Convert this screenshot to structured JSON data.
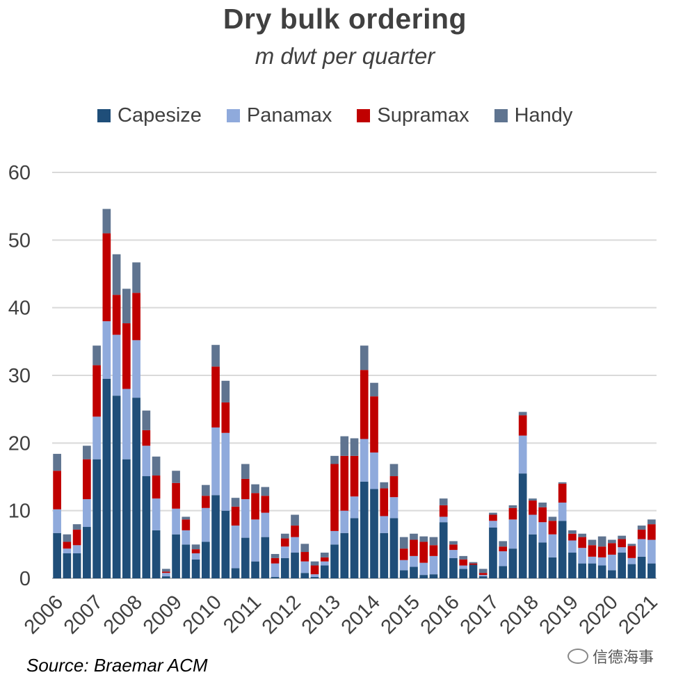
{
  "chart_data": {
    "type": "bar",
    "stacked": true,
    "title": "Dry bulk ordering",
    "subtitle": "m dwt per quarter",
    "ylim": [
      0,
      60
    ],
    "yticks": [
      0,
      10,
      20,
      30,
      40,
      50,
      60
    ],
    "grid": true,
    "legend_position": "top",
    "year_labels": [
      "2006",
      "2007",
      "2008",
      "2009",
      "2010",
      "2011",
      "2012",
      "2013",
      "2014",
      "2015",
      "2016",
      "2017",
      "2018",
      "2019",
      "2020",
      "2021"
    ],
    "categories": [
      "2006Q1",
      "2006Q2",
      "2006Q3",
      "2006Q4",
      "2007Q1",
      "2007Q2",
      "2007Q3",
      "2007Q4",
      "2008Q1",
      "2008Q2",
      "2008Q3",
      "2008Q4",
      "2009Q1",
      "2009Q2",
      "2009Q3",
      "2009Q4",
      "2010Q1",
      "2010Q2",
      "2010Q3",
      "2010Q4",
      "2011Q1",
      "2011Q2",
      "2011Q3",
      "2011Q4",
      "2012Q1",
      "2012Q2",
      "2012Q3",
      "2012Q4",
      "2013Q1",
      "2013Q2",
      "2013Q3",
      "2013Q4",
      "2014Q1",
      "2014Q2",
      "2014Q3",
      "2014Q4",
      "2015Q1",
      "2015Q2",
      "2015Q3",
      "2015Q4",
      "2016Q1",
      "2016Q2",
      "2016Q3",
      "2016Q4",
      "2017Q1",
      "2017Q2",
      "2017Q3",
      "2017Q4",
      "2018Q1",
      "2018Q2",
      "2018Q3",
      "2018Q4",
      "2019Q1",
      "2019Q2",
      "2019Q3",
      "2019Q4",
      "2020Q1",
      "2020Q2",
      "2020Q3",
      "2020Q4",
      "2021Q1"
    ],
    "series": [
      {
        "name": "Capesize",
        "color": "#1f4e79",
        "values": [
          6.7,
          3.7,
          3.7,
          7.6,
          17.6,
          29.5,
          27.0,
          17.6,
          26.7,
          15.1,
          7.1,
          0.3,
          6.5,
          5.0,
          2.8,
          5.4,
          12.3,
          10.0,
          1.5,
          6.0,
          2.5,
          6.1,
          0.2,
          3.0,
          3.8,
          0.8,
          0.2,
          1.9,
          5.0,
          6.7,
          8.9,
          14.3,
          13.2,
          6.7,
          8.9,
          1.2,
          1.7,
          0.5,
          0.6,
          8.3,
          3.0,
          1.4,
          2.0,
          0.3,
          7.5,
          1.8,
          4.4,
          15.5,
          6.5,
          5.3,
          3.1,
          8.5,
          3.8,
          2.2,
          2.2,
          1.9,
          1.2,
          3.8,
          2.1,
          3.2,
          2.2
        ]
      },
      {
        "name": "Panamax",
        "color": "#8faadc",
        "values": [
          3.5,
          0.7,
          1.2,
          4.1,
          6.3,
          8.5,
          9.0,
          10.4,
          8.5,
          4.5,
          4.7,
          0.5,
          3.8,
          2.1,
          0.9,
          5.0,
          10.0,
          11.5,
          6.3,
          5.7,
          6.2,
          3.6,
          2.0,
          1.7,
          2.3,
          1.7,
          0.4,
          0.6,
          2.0,
          3.3,
          3.2,
          6.3,
          5.4,
          2.5,
          3.1,
          1.5,
          1.6,
          1.8,
          2.7,
          0.8,
          1.2,
          0.5,
          0.0,
          0.2,
          1.0,
          2.2,
          4.3,
          5.6,
          2.9,
          3.0,
          3.4,
          2.7,
          1.8,
          2.3,
          1.0,
          1.2,
          2.3,
          0.8,
          0.9,
          2.6,
          3.5
        ]
      },
      {
        "name": "Supramax",
        "color": "#c00000",
        "values": [
          5.7,
          1.0,
          2.3,
          5.9,
          7.6,
          13.0,
          5.9,
          9.7,
          7.0,
          2.3,
          3.4,
          0.2,
          3.8,
          1.6,
          0.6,
          1.8,
          9.0,
          4.5,
          2.8,
          3.0,
          3.9,
          2.5,
          0.8,
          1.2,
          1.7,
          1.4,
          1.3,
          0.6,
          9.9,
          8.1,
          6.0,
          10.2,
          8.3,
          4.1,
          3.1,
          1.7,
          2.4,
          3.1,
          1.6,
          1.7,
          0.8,
          0.9,
          0.2,
          0.3,
          0.9,
          0.7,
          1.7,
          3.0,
          2.1,
          2.2,
          2.0,
          2.8,
          1.0,
          1.6,
          1.7,
          1.6,
          1.7,
          1.2,
          1.8,
          1.4,
          2.3
        ]
      },
      {
        "name": "Handy",
        "color": "#5f7490",
        "values": [
          2.5,
          1.1,
          0.8,
          2.0,
          2.9,
          3.6,
          6.0,
          5.1,
          4.5,
          2.9,
          2.8,
          0.4,
          1.8,
          0.4,
          0.7,
          1.6,
          3.2,
          3.2,
          1.3,
          2.2,
          1.3,
          1.3,
          0.6,
          0.7,
          1.6,
          1.2,
          0.6,
          0.7,
          1.2,
          2.9,
          2.6,
          3.6,
          2.0,
          0.9,
          1.8,
          1.7,
          0.9,
          0.8,
          1.2,
          1.0,
          0.5,
          0.5,
          0.2,
          0.6,
          0.3,
          0.8,
          0.4,
          0.5,
          0.3,
          0.7,
          0.6,
          0.2,
          0.5,
          0.5,
          0.8,
          1.5,
          0.5,
          0.5,
          0.3,
          0.6,
          0.7
        ]
      }
    ]
  },
  "source": "Source: Braemar ACM",
  "watermark": "信德海事"
}
